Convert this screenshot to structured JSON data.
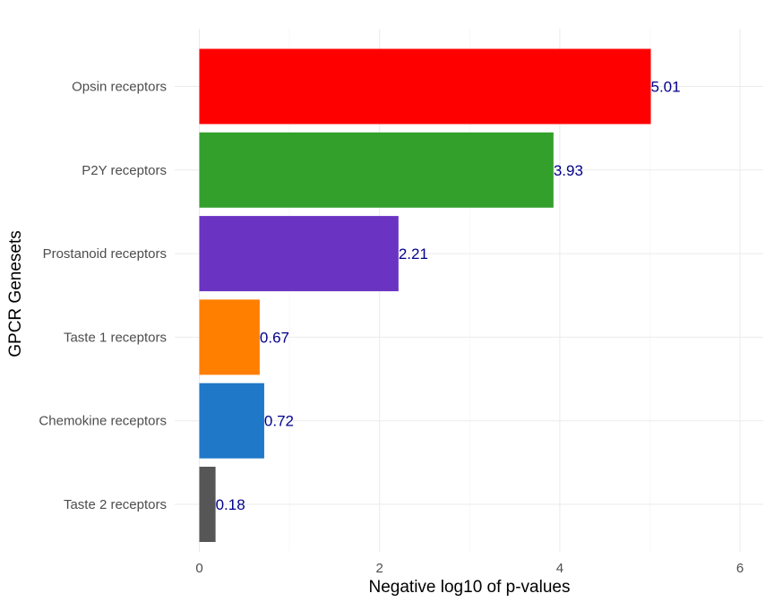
{
  "chart_data": {
    "type": "bar",
    "orientation": "horizontal",
    "categories": [
      "Opsin receptors",
      "P2Y receptors",
      "Prostanoid receptors",
      "Taste 1 receptors",
      "Chemokine receptors",
      "Taste 2 receptors"
    ],
    "values": [
      5.01,
      3.93,
      2.21,
      0.67,
      0.72,
      0.18
    ],
    "value_labels": [
      "5.01",
      "3.93",
      "2.21",
      "0.67",
      "0.72",
      "0.18"
    ],
    "colors": [
      "#ff0000",
      "#33a02c",
      "#6a33c2",
      "#ff7f00",
      "#1f78c8",
      "#565656"
    ],
    "xlabel": "Negative log10 of p-values",
    "ylabel": "GPCR Genesets",
    "xticks": [
      0,
      2,
      4,
      6
    ],
    "xtick_labels": [
      "0",
      "2",
      "4",
      "6"
    ],
    "xlim": [
      -0.04,
      6.3
    ],
    "grid": true,
    "legend": "none",
    "label_color": "#00008b"
  }
}
